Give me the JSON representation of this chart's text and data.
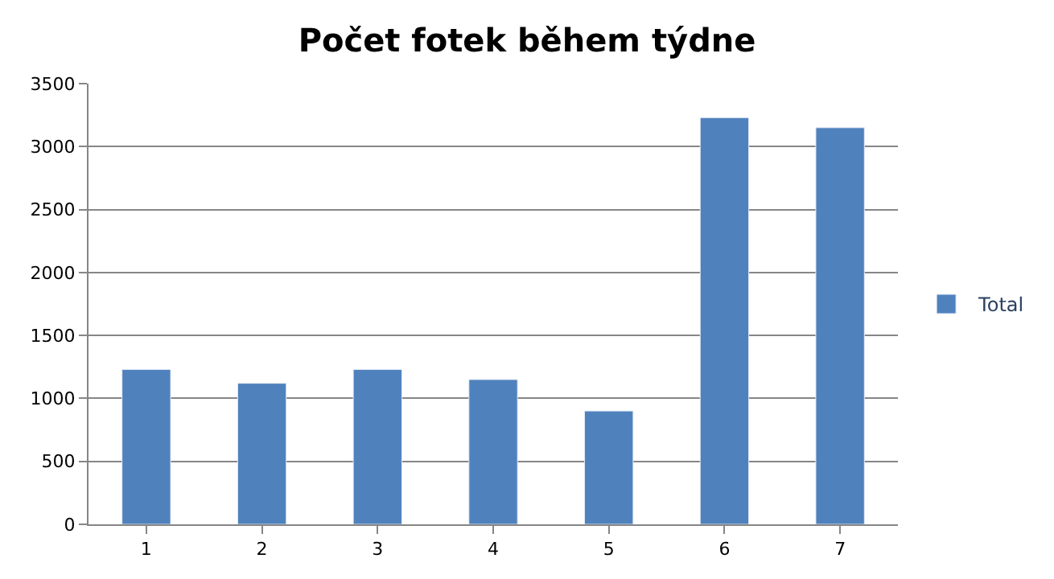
{
  "chart_data": {
    "type": "bar",
    "title": "Počet fotek během týdne",
    "categories": [
      "1",
      "2",
      "3",
      "4",
      "5",
      "6",
      "7"
    ],
    "series": [
      {
        "name": "Total",
        "color": "#4f81bd",
        "values": [
          1230,
          1120,
          1230,
          1150,
          900,
          3230,
          3150
        ]
      }
    ],
    "ylim": [
      0,
      3500
    ],
    "yticks": [
      0,
      500,
      1000,
      1500,
      2000,
      2500,
      3000,
      3500
    ],
    "grid": "y",
    "legend": "right"
  }
}
